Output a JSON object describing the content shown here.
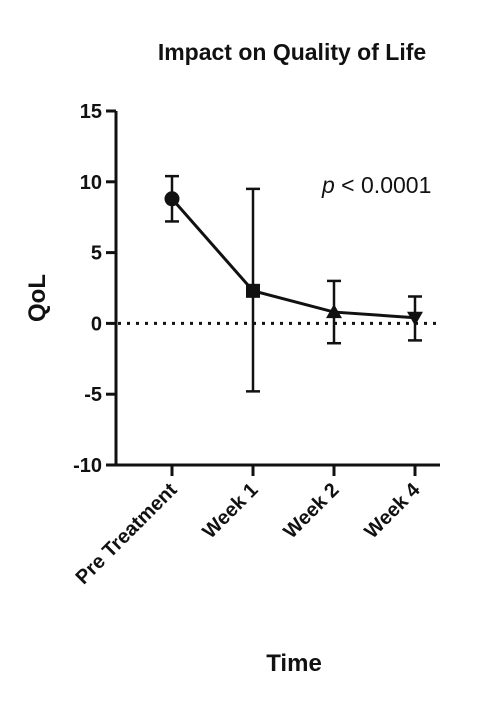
{
  "chart_data": {
    "type": "line",
    "title": "Impact on Quality of Life",
    "xlabel": "Time",
    "ylabel": "QoL",
    "ylim": [
      -10,
      15
    ],
    "yticks": [
      -10,
      -5,
      0,
      5,
      10,
      15
    ],
    "ytick_labels": [
      "-10",
      "-5",
      "0",
      "5",
      "10",
      "15"
    ],
    "categories": [
      "Pre Treatment",
      "Week 1",
      "Week 2",
      "Week 4"
    ],
    "series": [
      {
        "values": [
          8.8,
          2.3,
          0.8,
          0.4
        ],
        "error_upper": [
          10.4,
          9.5,
          3.0,
          1.9
        ],
        "error_lower": [
          7.2,
          -4.8,
          -1.4,
          -1.2
        ],
        "markers": [
          "circle",
          "square",
          "triangle-up",
          "triangle-down"
        ],
        "color": "#111111"
      }
    ],
    "reference_line": {
      "y": 0,
      "style": "dotted"
    },
    "annotation": {
      "italic_part": "p",
      "rest": " < 0.0001"
    },
    "grid": false
  }
}
